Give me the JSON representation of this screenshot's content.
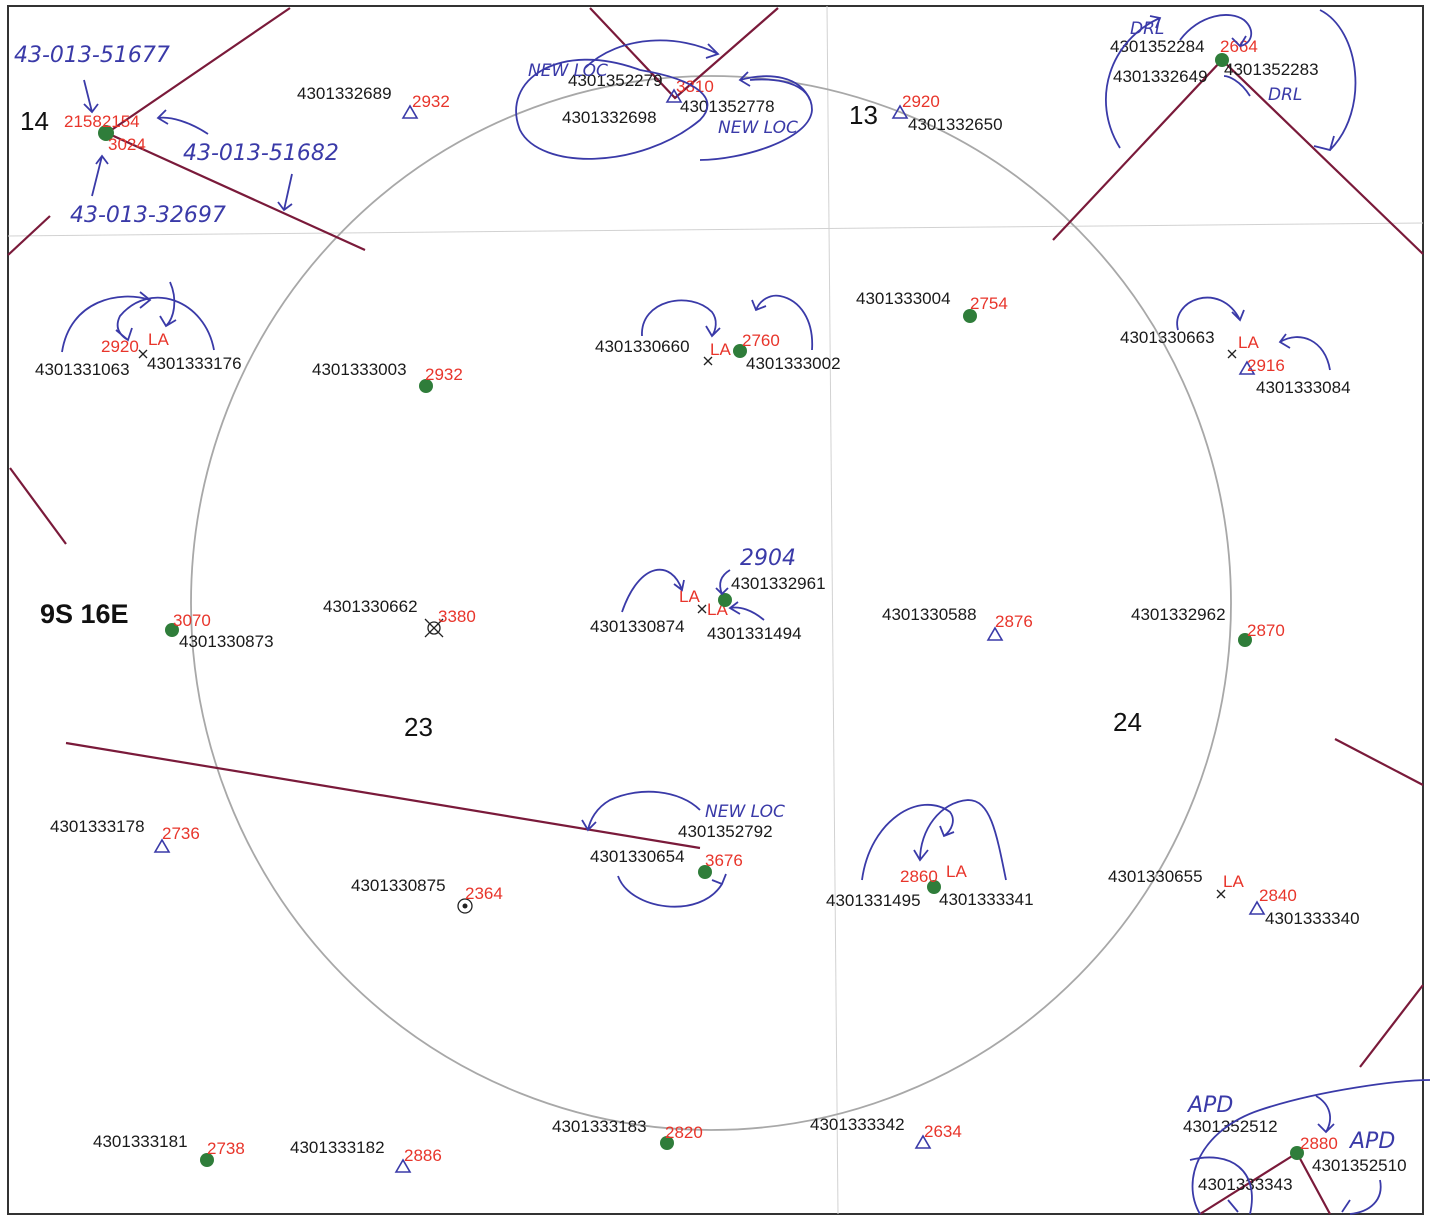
{
  "township": "9S 16E",
  "sections": [
    "14",
    "13",
    "23",
    "24"
  ],
  "wells": [
    {
      "api": "4301332689",
      "elev": "2932",
      "symbol": "triangle"
    },
    {
      "api": "4301332650",
      "elev": "2920",
      "symbol": "triangle"
    },
    {
      "api": "4301352279",
      "elev": "3310",
      "symbol": "triangle"
    },
    {
      "api": "4301352778",
      "symbol": "none"
    },
    {
      "api": "4301332698",
      "symbol": "none"
    },
    {
      "api": "4301352284",
      "elev": "2664",
      "symbol": "dot"
    },
    {
      "api": "4301332649",
      "symbol": "none"
    },
    {
      "api": "4301352283",
      "symbol": "none"
    },
    {
      "api": "21582154",
      "elev": "3024",
      "symbol": "dot"
    },
    {
      "api": "4301331063",
      "elev": "2920",
      "status": "LA",
      "symbol": "x"
    },
    {
      "api": "4301333176",
      "symbol": "none"
    },
    {
      "api": "4301333003",
      "elev": "2932",
      "symbol": "dot"
    },
    {
      "api": "4301330660",
      "status": "LA",
      "symbol": "x"
    },
    {
      "api": "4301333002",
      "elev": "2760",
      "symbol": "dot"
    },
    {
      "api": "4301333004",
      "elev": "2754",
      "symbol": "dot"
    },
    {
      "api": "4301330663",
      "status": "LA",
      "symbol": "x"
    },
    {
      "api": "4301333084",
      "elev": "2916",
      "symbol": "triangle"
    },
    {
      "api": "4301330873",
      "elev": "3070",
      "symbol": "dot"
    },
    {
      "api": "4301330662",
      "elev": "3380",
      "symbol": "plugged"
    },
    {
      "api": "4301330874",
      "status": "LA",
      "symbol": "x"
    },
    {
      "api": "4301331494",
      "status": "LA",
      "symbol": "x"
    },
    {
      "api": "4301332961",
      "symbol": "dot"
    },
    {
      "api": "4301330588",
      "elev": "2876",
      "symbol": "triangle"
    },
    {
      "api": "4301332962",
      "elev": "2870",
      "symbol": "dot"
    },
    {
      "api": "4301333178",
      "elev": "2736",
      "symbol": "triangle"
    },
    {
      "api": "4301352792",
      "symbol": "none"
    },
    {
      "api": "4301330654",
      "elev": "3676",
      "symbol": "dot"
    },
    {
      "api": "4301330875",
      "elev": "2364",
      "symbol": "injector"
    },
    {
      "api": "4301331495",
      "elev": "2860",
      "status": "LA",
      "symbol": "dot"
    },
    {
      "api": "4301333341",
      "symbol": "none"
    },
    {
      "api": "4301330655",
      "status": "LA",
      "symbol": "x"
    },
    {
      "api": "4301333340",
      "elev": "2840",
      "symbol": "triangle"
    },
    {
      "api": "4301333181",
      "elev": "2738",
      "symbol": "dot"
    },
    {
      "api": "4301333182",
      "elev": "2886",
      "symbol": "triangle"
    },
    {
      "api": "4301333183",
      "elev": "2820",
      "symbol": "dot"
    },
    {
      "api": "4301333342",
      "elev": "2634",
      "symbol": "triangle"
    },
    {
      "api": "4301352512",
      "symbol": "none"
    },
    {
      "api": "4301352510",
      "elev": "2880",
      "symbol": "dot"
    },
    {
      "api": "4301333343",
      "symbol": "none"
    }
  ],
  "annotations": {
    "top_left_1": "43-013-51677",
    "top_left_2": "43-013-51682",
    "top_left_3": "43-013-32697",
    "new_loc_1": "NEW LOC",
    "new_loc_2": "NEW LOC",
    "new_loc_3": "NEW LOC",
    "drl_1": "DRL",
    "drl_2": "DRL",
    "elev_2904": "2904",
    "apd_1": "APD",
    "apd_2": "APD"
  },
  "colors": {
    "api_text": "#1a1a1a",
    "elevation_text": "#e8352b",
    "well_dot": "#2f7d3a",
    "ink": "#3a3aa8",
    "lease_line": "#7a1a3a",
    "radius_circle": "#a8a8a8"
  }
}
